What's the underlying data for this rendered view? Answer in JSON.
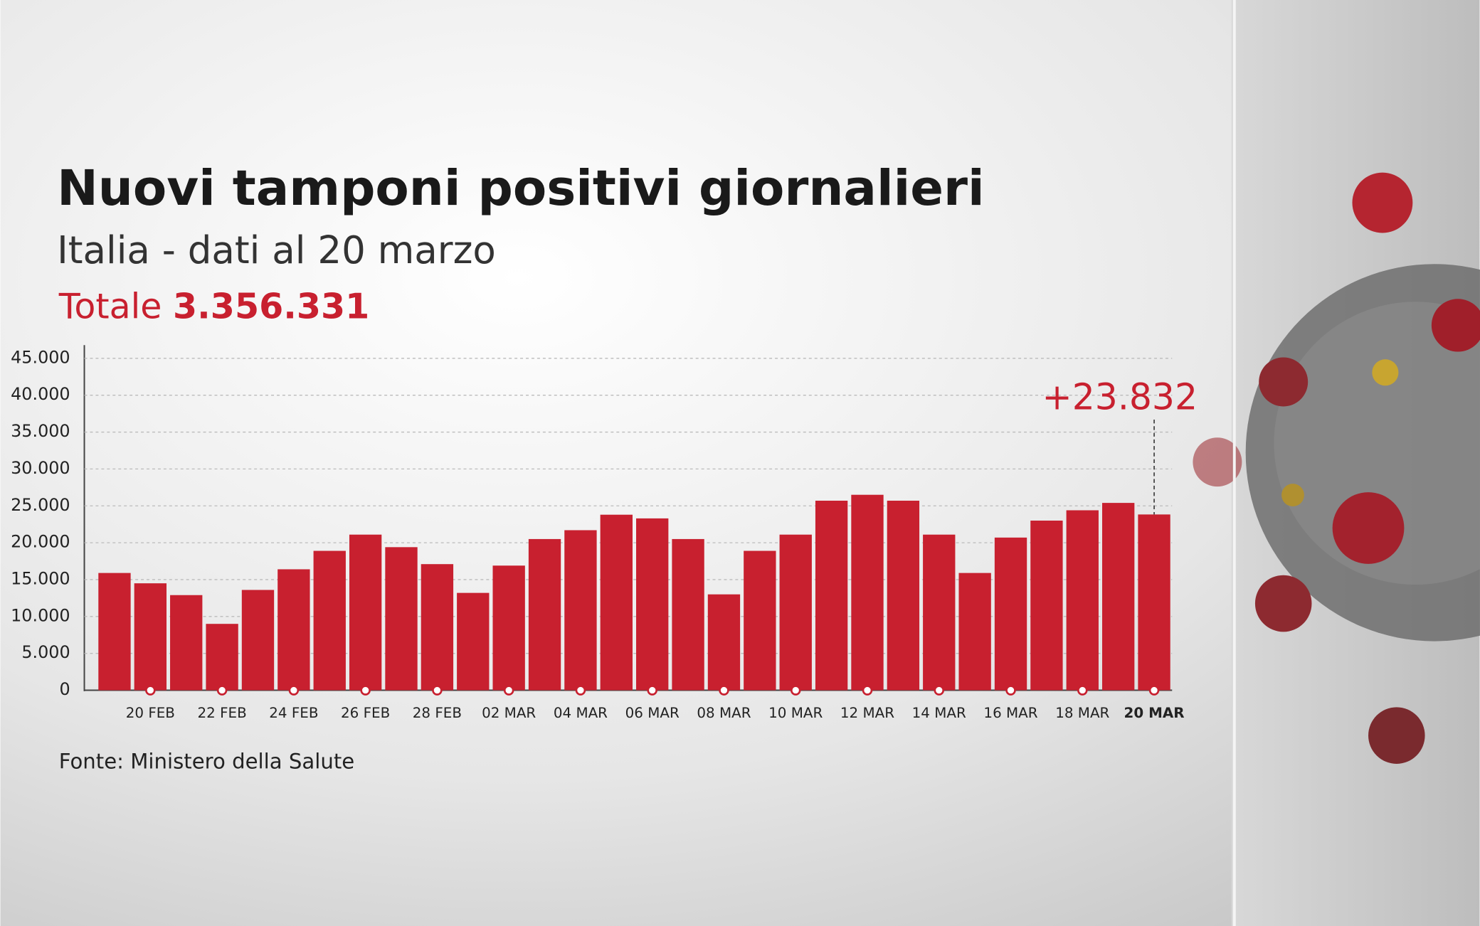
{
  "chart_data": {
    "type": "bar",
    "title": "Nuovi tamponi positivi giornalieri",
    "subtitle": "Italia - dati al 20 marzo",
    "total_label": "Totale",
    "total": "3.356.331",
    "source": "Fonte: Ministero della Salute",
    "color": "#c8202f",
    "grid": true,
    "categories": [
      null,
      "20 FEB",
      null,
      "22 FEB",
      null,
      "24 FEB",
      null,
      "26 FEB",
      null,
      "28 FEB",
      null,
      "02 MAR",
      null,
      "04 MAR",
      null,
      "06 MAR",
      null,
      "08 MAR",
      null,
      "10 MAR",
      null,
      "12 MAR",
      null,
      "14 MAR",
      null,
      "16 MAR",
      null,
      "18 MAR",
      null,
      "20 MAR"
    ],
    "values": [
      15900,
      14500,
      12900,
      9000,
      13600,
      16400,
      18900,
      21100,
      19400,
      17100,
      13200,
      16900,
      20500,
      21700,
      23800,
      23300,
      20500,
      13000,
      18900,
      21100,
      25700,
      26500,
      25700,
      21100,
      15900,
      20700,
      23000,
      24400,
      25400,
      23832
    ],
    "value_labels": [
      null,
      null,
      null,
      null,
      null,
      null,
      null,
      null,
      null,
      null,
      null,
      null,
      null,
      null,
      null,
      null,
      null,
      null,
      null,
      null,
      null,
      null,
      null,
      null,
      null,
      null,
      null,
      null,
      null,
      "+23.832"
    ],
    "ylim": [
      0,
      45000
    ],
    "yticks": [
      0,
      {
        "value": 5000,
        "label": "5.000"
      },
      {
        "value": 10000,
        "label": "10.000"
      },
      {
        "value": 15000,
        "label": "15.000"
      },
      {
        "value": 20000,
        "label": "20.000"
      },
      {
        "value": 25000,
        "label": "25.000"
      },
      {
        "value": 30000,
        "label": "30.000"
      },
      {
        "value": 35000,
        "label": "35.000"
      },
      {
        "value": 40000,
        "label": "40.000"
      },
      {
        "value": 45000,
        "label": "45.000"
      }
    ]
  }
}
